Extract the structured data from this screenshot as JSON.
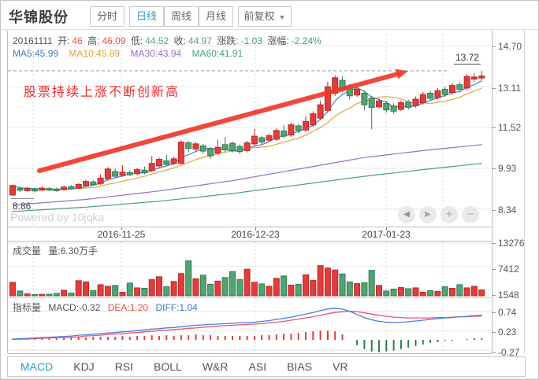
{
  "header": {
    "title": "华锦股份",
    "tabs": [
      {
        "label": "分时",
        "active": false
      },
      {
        "label": "日线",
        "active": true
      },
      {
        "label": "周线",
        "active": false
      },
      {
        "label": "月线",
        "active": false
      }
    ],
    "adjust_dropdown": {
      "label": "前复权",
      "caret": "▼"
    }
  },
  "info_bar": {
    "date": "20161111",
    "open_label": "开:",
    "open": "46",
    "high_label": "高:",
    "high": "46.09",
    "low_label": "低:",
    "low": "44.52",
    "close_label": "收:",
    "close": "44.97",
    "change_label": "涨跌:",
    "change": "-1.03",
    "pct_label": "涨幅:",
    "pct": "-2.24%"
  },
  "ma_bar": {
    "ma5": "MA5:45.99",
    "ma10": "MA10:45.89",
    "ma30": "MA30:43.94",
    "ma60": "MA60:41.91"
  },
  "annotation": {
    "text": "股票持续上涨不断创新高"
  },
  "main_axis": {
    "labels": [
      "14.70",
      "13.11",
      "11.52",
      "9.93",
      "8.34"
    ],
    "high_label": "13.72",
    "low_label": "8.86"
  },
  "watermark": "Powered by 10jqka",
  "nav": {
    "prev": "◀",
    "next": "▶",
    "zoom_in": "+",
    "zoom_out": "−"
  },
  "x_axis": {
    "dates": [
      "2016-11-25",
      "2016-12-23",
      "2017-01-23"
    ]
  },
  "volume_pane": {
    "title": "成交量",
    "value_label": "量:6.30万手",
    "axis": [
      "13276",
      "7412",
      "1548"
    ]
  },
  "indicator_pane": {
    "title": "指标量",
    "macd": "MACD:-0.32",
    "dea": "DEA:1.20",
    "diff": "DIFF:1.04",
    "axis": [
      "0.74",
      "0.23",
      "-0.27"
    ]
  },
  "bottom_tabs": [
    {
      "label": "MACD",
      "active": true
    },
    {
      "label": "KDJ",
      "active": false
    },
    {
      "label": "RSI",
      "active": false
    },
    {
      "label": "BOLL",
      "active": false
    },
    {
      "label": "W&R",
      "active": false
    },
    {
      "label": "ASI",
      "active": false
    },
    {
      "label": "BIAS",
      "active": false
    },
    {
      "label": "VR",
      "active": false
    }
  ],
  "colors": {
    "up": "#e23c3c",
    "up_border": "#b92b2b",
    "down": "#55a173",
    "down_border": "#2f7d4f",
    "ma5": "#4a7dbe",
    "ma10": "#e2a33d",
    "ma30": "#9a6fc4",
    "ma60": "#4b9e86",
    "diff": "#4a7de0",
    "dea": "#e8566d",
    "arrow": "#f0392b",
    "grid": "#e8e8e8",
    "grid_dash": "#d8d8d8",
    "accent_tab": "#2f9fc4"
  },
  "chart_data": {
    "type": "candlestick+volume+macd",
    "convention": "red=up, green=down",
    "x_dates": [
      "2016-11-25",
      "2016-12-23",
      "2017-01-23"
    ],
    "price": {
      "type": "candlestick",
      "ylim": [
        8.04,
        14.7
      ],
      "yticks": [
        14.7,
        13.11,
        11.52,
        9.93,
        8.34
      ],
      "prev_high": 13.72,
      "first_low": 8.86,
      "candle_format": [
        "dir(1=red,0=green)",
        "low",
        "bodyLow",
        "bodyHigh",
        "high"
      ],
      "candles": [
        [
          1,
          8.86,
          8.89,
          9.26,
          9.3
        ],
        [
          0,
          9.0,
          9.08,
          9.14,
          9.22
        ],
        [
          1,
          9.02,
          9.06,
          9.14,
          9.2
        ],
        [
          0,
          9.0,
          9.05,
          9.12,
          9.18
        ],
        [
          1,
          9.05,
          9.08,
          9.16,
          9.22
        ],
        [
          0,
          9.04,
          9.08,
          9.14,
          9.2
        ],
        [
          0,
          9.02,
          9.06,
          9.12,
          9.18
        ],
        [
          1,
          9.06,
          9.1,
          9.2,
          9.26
        ],
        [
          0,
          9.1,
          9.14,
          9.22,
          9.28
        ],
        [
          1,
          9.12,
          9.16,
          9.3,
          9.36
        ],
        [
          1,
          9.2,
          9.26,
          9.42,
          9.48
        ],
        [
          0,
          9.25,
          9.3,
          9.4,
          9.46
        ],
        [
          1,
          9.28,
          9.34,
          9.55,
          9.7
        ],
        [
          1,
          9.45,
          9.52,
          9.9,
          9.98
        ],
        [
          0,
          9.55,
          9.62,
          9.8,
          9.92
        ],
        [
          1,
          9.6,
          9.66,
          9.78,
          10.05
        ],
        [
          0,
          9.62,
          9.68,
          9.76,
          9.85
        ],
        [
          1,
          9.66,
          9.72,
          9.88,
          9.95
        ],
        [
          0,
          9.7,
          9.76,
          9.86,
          10.0
        ],
        [
          1,
          9.78,
          9.84,
          10.12,
          10.4
        ],
        [
          1,
          9.95,
          10.02,
          10.28,
          10.35
        ],
        [
          0,
          10.0,
          10.08,
          10.22,
          10.45
        ],
        [
          1,
          10.05,
          10.12,
          10.3,
          10.38
        ],
        [
          1,
          10.08,
          10.12,
          10.95,
          11.02
        ],
        [
          0,
          10.55,
          10.7,
          10.92,
          11.0
        ],
        [
          1,
          10.6,
          10.68,
          10.88,
          10.96
        ],
        [
          0,
          10.5,
          10.6,
          10.8,
          10.88
        ],
        [
          0,
          10.3,
          10.42,
          10.68,
          10.75
        ],
        [
          1,
          10.45,
          10.52,
          10.75,
          11.05
        ],
        [
          0,
          10.55,
          10.65,
          10.85,
          11.15
        ],
        [
          0,
          10.55,
          10.62,
          10.9,
          10.98
        ],
        [
          0,
          10.48,
          10.58,
          10.78,
          10.86
        ],
        [
          1,
          10.55,
          10.62,
          10.92,
          11.0
        ],
        [
          1,
          10.8,
          10.88,
          11.18,
          11.45
        ],
        [
          0,
          10.85,
          10.95,
          11.12,
          11.2
        ],
        [
          1,
          10.95,
          11.02,
          11.2,
          11.28
        ],
        [
          1,
          11.0,
          11.06,
          11.4,
          11.48
        ],
        [
          0,
          11.1,
          11.18,
          11.38,
          11.6
        ],
        [
          1,
          11.15,
          11.22,
          11.62,
          11.7
        ],
        [
          0,
          11.3,
          11.4,
          11.58,
          11.66
        ],
        [
          1,
          11.35,
          11.42,
          11.75,
          11.95
        ],
        [
          1,
          11.55,
          11.62,
          12.05,
          12.15
        ],
        [
          1,
          11.8,
          11.88,
          12.4,
          12.55
        ],
        [
          1,
          12.1,
          12.18,
          13.1,
          13.3
        ],
        [
          1,
          12.75,
          12.85,
          13.45,
          13.55
        ],
        [
          0,
          12.9,
          13.0,
          13.35,
          13.5
        ],
        [
          0,
          12.6,
          12.75,
          13.1,
          13.2
        ],
        [
          1,
          12.7,
          12.78,
          13.0,
          13.12
        ],
        [
          0,
          12.2,
          12.4,
          12.85,
          12.95
        ],
        [
          0,
          11.45,
          12.3,
          12.65,
          12.75
        ],
        [
          1,
          12.25,
          12.32,
          12.55,
          12.65
        ],
        [
          0,
          12.1,
          12.2,
          12.45,
          12.55
        ],
        [
          0,
          12.05,
          12.15,
          12.35,
          12.45
        ],
        [
          1,
          12.15,
          12.22,
          12.48,
          12.58
        ],
        [
          0,
          12.2,
          12.3,
          12.5,
          12.6
        ],
        [
          1,
          12.3,
          12.36,
          12.62,
          12.72
        ],
        [
          1,
          12.4,
          12.48,
          12.8,
          12.9
        ],
        [
          0,
          12.55,
          12.65,
          12.85,
          12.95
        ],
        [
          1,
          12.6,
          12.68,
          12.95,
          13.05
        ],
        [
          0,
          12.7,
          12.8,
          13.0,
          13.1
        ],
        [
          1,
          12.8,
          12.88,
          13.15,
          13.25
        ],
        [
          0,
          12.9,
          13.0,
          13.18,
          13.28
        ],
        [
          1,
          12.95,
          13.05,
          13.5,
          13.6
        ],
        [
          1,
          13.3,
          13.4,
          13.48,
          13.62
        ],
        [
          1,
          13.35,
          13.44,
          13.52,
          13.72
        ]
      ],
      "ma30_points": [
        [
          0,
          8.5
        ],
        [
          10,
          8.72
        ],
        [
          20,
          9.05
        ],
        [
          30,
          9.45
        ],
        [
          40,
          9.95
        ],
        [
          48,
          10.35
        ],
        [
          56,
          10.62
        ],
        [
          64,
          10.85
        ]
      ],
      "ma60_points": [
        [
          0,
          8.25
        ],
        [
          10,
          8.42
        ],
        [
          20,
          8.65
        ],
        [
          30,
          8.95
        ],
        [
          40,
          9.32
        ],
        [
          48,
          9.62
        ],
        [
          56,
          9.88
        ],
        [
          64,
          10.12
        ]
      ]
    },
    "volume": {
      "type": "bar",
      "yticks": [
        13276,
        7412,
        1548
      ],
      "values": [
        3400,
        1200,
        500,
        300,
        350,
        400,
        600,
        1400,
        700,
        3800,
        3500,
        1300,
        2800,
        2400,
        2600,
        900,
        3200,
        2000,
        1900,
        4100,
        4800,
        2300,
        3600,
        5600,
        8800,
        4300,
        5200,
        2900,
        3700,
        4600,
        6100,
        4100,
        6700,
        3400,
        3000,
        2400,
        4400,
        5000,
        2700,
        2900,
        5300,
        3900,
        7600,
        7000,
        6500,
        5500,
        3500,
        3100,
        3300,
        6400,
        2600,
        1200,
        1700,
        2100,
        1800,
        2000,
        900,
        1300,
        1100,
        2300,
        1900,
        2800,
        2000,
        2400,
        1500
      ]
    },
    "macd": {
      "type": "line+bar",
      "yticks": [
        0.74,
        0.23,
        -0.27
      ],
      "diff": [
        0.02,
        0.03,
        0.04,
        0.05,
        0.06,
        0.07,
        0.08,
        0.09,
        0.1,
        0.12,
        0.13,
        0.15,
        0.16,
        0.18,
        0.19,
        0.21,
        0.22,
        0.24,
        0.26,
        0.28,
        0.29,
        0.31,
        0.32,
        0.34,
        0.36,
        0.38,
        0.39,
        0.4,
        0.41,
        0.42,
        0.43,
        0.44,
        0.45,
        0.46,
        0.48,
        0.5,
        0.53,
        0.56,
        0.59,
        0.63,
        0.67,
        0.71,
        0.76,
        0.8,
        0.82,
        0.8,
        0.74,
        0.66,
        0.58,
        0.52,
        0.48,
        0.46,
        0.45,
        0.46,
        0.47,
        0.49,
        0.51,
        0.53,
        0.55,
        0.57,
        0.58,
        0.6,
        0.61,
        0.63,
        0.64
      ],
      "dea": [
        0.01,
        0.02,
        0.02,
        0.03,
        0.04,
        0.05,
        0.05,
        0.06,
        0.07,
        0.08,
        0.1,
        0.11,
        0.12,
        0.14,
        0.15,
        0.16,
        0.18,
        0.19,
        0.21,
        0.22,
        0.24,
        0.25,
        0.27,
        0.28,
        0.3,
        0.31,
        0.33,
        0.34,
        0.36,
        0.37,
        0.38,
        0.39,
        0.4,
        0.41,
        0.42,
        0.44,
        0.46,
        0.48,
        0.51,
        0.54,
        0.57,
        0.6,
        0.64,
        0.68,
        0.71,
        0.73,
        0.74,
        0.73,
        0.7,
        0.67,
        0.64,
        0.61,
        0.59,
        0.58,
        0.57,
        0.57,
        0.57,
        0.57,
        0.58,
        0.58,
        0.59,
        0.6,
        0.6,
        0.61,
        0.62
      ]
    }
  }
}
